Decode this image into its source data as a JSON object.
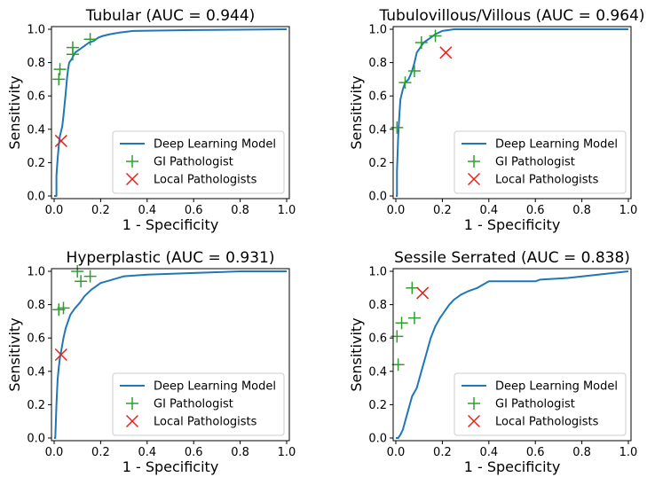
{
  "colors": {
    "model": "#1f77b4",
    "gi": "#2ca02c",
    "local": "#e8201a"
  },
  "chart_data": [
    {
      "type": "line",
      "title": "Tubular (AUC = 0.944)",
      "xlabel": "1 - Specificity",
      "ylabel": "Sensitivity",
      "xlim": [
        0,
        1
      ],
      "ylim": [
        0,
        1
      ],
      "xticks": [
        "0.0",
        "0.2",
        "0.4",
        "0.6",
        "0.8",
        "1.0"
      ],
      "yticks": [
        "0.0",
        "0.2",
        "0.4",
        "0.6",
        "0.8",
        "1.0"
      ],
      "grid": false,
      "legend_position": "lower-right",
      "legend": [
        "Deep Learning Model",
        "GI Pathologist",
        "Local Pathologists"
      ],
      "series": [
        {
          "name": "Deep Learning Model",
          "kind": "step-line",
          "points": [
            [
              0,
              0
            ],
            [
              0.01,
              0
            ],
            [
              0.01,
              0.12
            ],
            [
              0.015,
              0.22
            ],
            [
              0.02,
              0.3
            ],
            [
              0.025,
              0.36
            ],
            [
              0.03,
              0.39
            ],
            [
              0.035,
              0.42
            ],
            [
              0.04,
              0.48
            ],
            [
              0.045,
              0.55
            ],
            [
              0.05,
              0.62
            ],
            [
              0.055,
              0.7
            ],
            [
              0.06,
              0.76
            ],
            [
              0.065,
              0.8
            ],
            [
              0.075,
              0.82
            ],
            [
              0.09,
              0.86
            ],
            [
              0.11,
              0.88
            ],
            [
              0.13,
              0.9
            ],
            [
              0.15,
              0.92
            ],
            [
              0.17,
              0.93
            ],
            [
              0.19,
              0.95
            ],
            [
              0.21,
              0.96
            ],
            [
              0.24,
              0.97
            ],
            [
              0.28,
              0.98
            ],
            [
              0.34,
              0.99
            ],
            [
              0.6,
              0.995
            ],
            [
              1.0,
              1.0
            ]
          ]
        },
        {
          "name": "GI Pathologist",
          "kind": "plus-markers",
          "points": [
            [
              0.02,
              0.7
            ],
            [
              0.025,
              0.76
            ],
            [
              0.08,
              0.85
            ],
            [
              0.08,
              0.89
            ],
            [
              0.155,
              0.94
            ]
          ]
        },
        {
          "name": "Local Pathologists",
          "kind": "x-markers",
          "points": [
            [
              0.03,
              0.33
            ]
          ]
        }
      ]
    },
    {
      "type": "line",
      "title": "Tubulovillous/Villous (AUC = 0.964)",
      "xlabel": "1 - Specificity",
      "ylabel": "Sensitivity",
      "xlim": [
        0,
        1
      ],
      "ylim": [
        0,
        1
      ],
      "xticks": [
        "0.0",
        "0.2",
        "0.4",
        "0.6",
        "0.8",
        "1.0"
      ],
      "yticks": [
        "0.0",
        "0.2",
        "0.4",
        "0.6",
        "0.8",
        "1.0"
      ],
      "grid": false,
      "legend_position": "lower-right",
      "legend": [
        "Deep Learning Model",
        "GI Pathologist",
        "Local Pathologists"
      ],
      "series": [
        {
          "name": "Deep Learning Model",
          "kind": "step-line",
          "points": [
            [
              0,
              0
            ],
            [
              0.005,
              0
            ],
            [
              0.005,
              0.15
            ],
            [
              0.01,
              0.35
            ],
            [
              0.015,
              0.48
            ],
            [
              0.02,
              0.58
            ],
            [
              0.03,
              0.64
            ],
            [
              0.04,
              0.68
            ],
            [
              0.055,
              0.7
            ],
            [
              0.07,
              0.75
            ],
            [
              0.08,
              0.8
            ],
            [
              0.09,
              0.86
            ],
            [
              0.1,
              0.88
            ],
            [
              0.12,
              0.92
            ],
            [
              0.15,
              0.95
            ],
            [
              0.17,
              0.97
            ],
            [
              0.2,
              0.99
            ],
            [
              0.25,
              1.0
            ],
            [
              1.0,
              1.0
            ]
          ]
        },
        {
          "name": "GI Pathologist",
          "kind": "plus-markers",
          "points": [
            [
              0.005,
              0.41
            ],
            [
              0.04,
              0.68
            ],
            [
              0.08,
              0.75
            ],
            [
              0.11,
              0.92
            ],
            [
              0.17,
              0.96
            ]
          ]
        },
        {
          "name": "Local Pathologists",
          "kind": "x-markers",
          "points": [
            [
              0.215,
              0.86
            ]
          ]
        }
      ]
    },
    {
      "type": "line",
      "title": "Hyperplastic (AUC = 0.931)",
      "xlabel": "1 - Specificity",
      "ylabel": "Sensitivity",
      "xlim": [
        0,
        1
      ],
      "ylim": [
        0,
        1
      ],
      "xticks": [
        "0.0",
        "0.2",
        "0.4",
        "0.6",
        "0.8",
        "1.0"
      ],
      "yticks": [
        "0.0",
        "0.2",
        "0.4",
        "0.6",
        "0.8",
        "1.0"
      ],
      "grid": false,
      "legend_position": "lower-right",
      "legend": [
        "Deep Learning Model",
        "GI Pathologist",
        "Local Pathologists"
      ],
      "series": [
        {
          "name": "Deep Learning Model",
          "kind": "step-line",
          "points": [
            [
              0,
              0
            ],
            [
              0.005,
              0
            ],
            [
              0.01,
              0.2
            ],
            [
              0.015,
              0.35
            ],
            [
              0.02,
              0.42
            ],
            [
              0.025,
              0.48
            ],
            [
              0.03,
              0.52
            ],
            [
              0.04,
              0.6
            ],
            [
              0.05,
              0.66
            ],
            [
              0.06,
              0.7
            ],
            [
              0.07,
              0.74
            ],
            [
              0.09,
              0.78
            ],
            [
              0.11,
              0.81
            ],
            [
              0.13,
              0.85
            ],
            [
              0.16,
              0.89
            ],
            [
              0.2,
              0.93
            ],
            [
              0.25,
              0.95
            ],
            [
              0.3,
              0.97
            ],
            [
              0.4,
              0.98
            ],
            [
              0.6,
              0.99
            ],
            [
              0.8,
              1.0
            ],
            [
              1.0,
              1.0
            ]
          ]
        },
        {
          "name": "GI Pathologist",
          "kind": "plus-markers",
          "points": [
            [
              0.02,
              0.77
            ],
            [
              0.04,
              0.78
            ],
            [
              0.1,
              1.0
            ],
            [
              0.115,
              0.94
            ],
            [
              0.155,
              0.97
            ]
          ]
        },
        {
          "name": "Local Pathologists",
          "kind": "x-markers",
          "points": [
            [
              0.03,
              0.5
            ]
          ]
        }
      ]
    },
    {
      "type": "line",
      "title": "Sessile Serrated (AUC = 0.838)",
      "xlabel": "1 - Specificity",
      "ylabel": "Sensitivity",
      "xlim": [
        0,
        1
      ],
      "ylim": [
        0,
        1
      ],
      "xticks": [
        "0.0",
        "0.2",
        "0.4",
        "0.6",
        "0.8",
        "1.0"
      ],
      "yticks": [
        "0.0",
        "0.2",
        "0.4",
        "0.6",
        "0.8",
        "1.0"
      ],
      "grid": false,
      "legend_position": "lower-right",
      "legend": [
        "Deep Learning Model",
        "GI Pathologist",
        "Local Pathologists"
      ],
      "series": [
        {
          "name": "Deep Learning Model",
          "kind": "step-line",
          "points": [
            [
              0,
              0
            ],
            [
              0.01,
              0
            ],
            [
              0.02,
              0.02
            ],
            [
              0.03,
              0.05
            ],
            [
              0.04,
              0.1
            ],
            [
              0.05,
              0.15
            ],
            [
              0.07,
              0.25
            ],
            [
              0.09,
              0.3
            ],
            [
              0.11,
              0.4
            ],
            [
              0.13,
              0.5
            ],
            [
              0.15,
              0.6
            ],
            [
              0.17,
              0.67
            ],
            [
              0.19,
              0.72
            ],
            [
              0.21,
              0.76
            ],
            [
              0.23,
              0.8
            ],
            [
              0.25,
              0.83
            ],
            [
              0.28,
              0.86
            ],
            [
              0.31,
              0.88
            ],
            [
              0.35,
              0.9
            ],
            [
              0.4,
              0.94
            ],
            [
              0.6,
              0.94
            ],
            [
              0.62,
              0.95
            ],
            [
              0.74,
              0.96
            ],
            [
              1.0,
              1.0
            ]
          ]
        },
        {
          "name": "GI Pathologist",
          "kind": "plus-markers",
          "points": [
            [
              0.005,
              0.61
            ],
            [
              0.01,
              0.44
            ],
            [
              0.025,
              0.69
            ],
            [
              0.07,
              0.9
            ],
            [
              0.08,
              0.72
            ]
          ]
        },
        {
          "name": "Local Pathologists",
          "kind": "x-markers",
          "points": [
            [
              0.115,
              0.87
            ]
          ]
        }
      ]
    }
  ]
}
